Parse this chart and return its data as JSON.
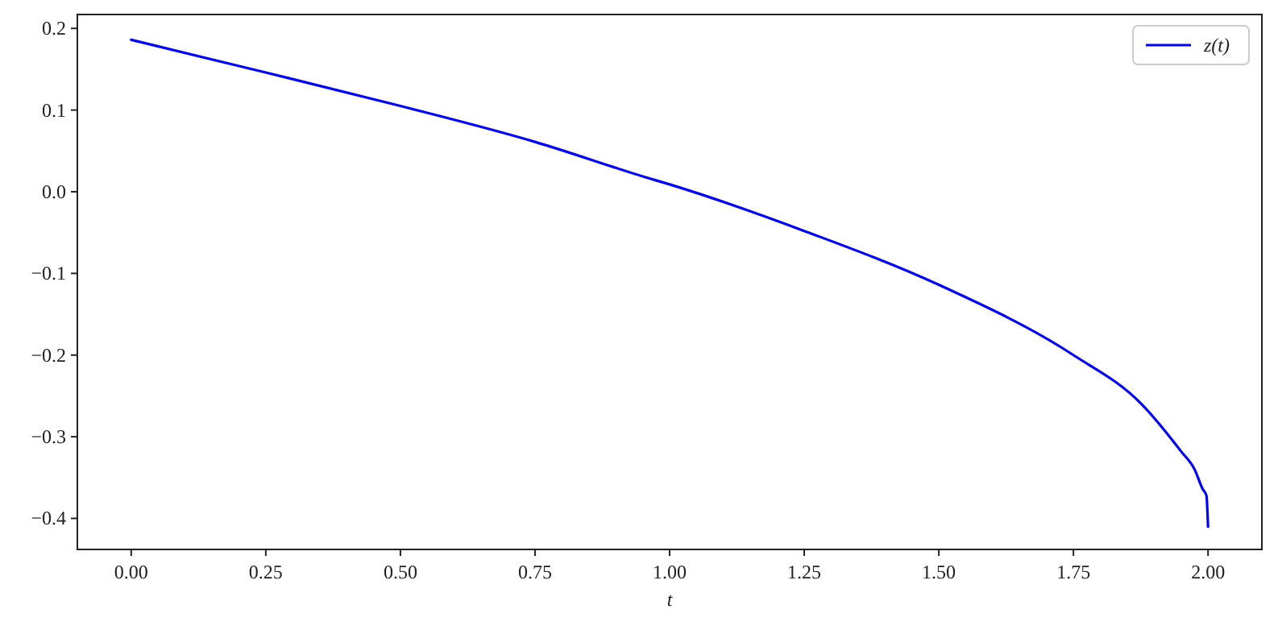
{
  "chart_data": {
    "type": "line",
    "xlabel": "t",
    "xlim": [
      -0.1,
      2.1
    ],
    "ylim": [
      -0.438,
      0.217
    ],
    "xticks": [
      {
        "value": 0,
        "label": "0.00"
      },
      {
        "value": 0.25,
        "label": "0.25"
      },
      {
        "value": 0.5,
        "label": "0.50"
      },
      {
        "value": 0.75,
        "label": "0.75"
      },
      {
        "value": 1,
        "label": "1.00"
      },
      {
        "value": 1.25,
        "label": "1.25"
      },
      {
        "value": 1.5,
        "label": "1.50"
      },
      {
        "value": 1.75,
        "label": "1.75"
      },
      {
        "value": 2,
        "label": "2.00"
      }
    ],
    "yticks": [
      {
        "value": -0.4,
        "label": "−0.4"
      },
      {
        "value": -0.3,
        "label": "−0.3"
      },
      {
        "value": -0.2,
        "label": "−0.2"
      },
      {
        "value": -0.1,
        "label": "−0.1"
      },
      {
        "value": 0,
        "label": "0.0"
      },
      {
        "value": 0.1,
        "label": "0.1"
      },
      {
        "value": 0.2,
        "label": "0.2"
      }
    ],
    "legend": "top right",
    "grid": false,
    "marker": "none",
    "line_style": "solid",
    "series": [
      {
        "name": "z(t)",
        "color": "#0000ff",
        "x": [
          0,
          0.25,
          0.5,
          0.75,
          0.954,
          1,
          1.25,
          1.5,
          1.75,
          1.875,
          1.95,
          1.975,
          1.99,
          1.997,
          2
        ],
        "values": [
          0.186,
          0.146,
          0.105,
          0.061,
          0.018,
          0.009,
          -0.048,
          -0.114,
          -0.2,
          -0.259,
          -0.318,
          -0.34,
          -0.364,
          -0.372,
          -0.41
        ]
      }
    ]
  }
}
